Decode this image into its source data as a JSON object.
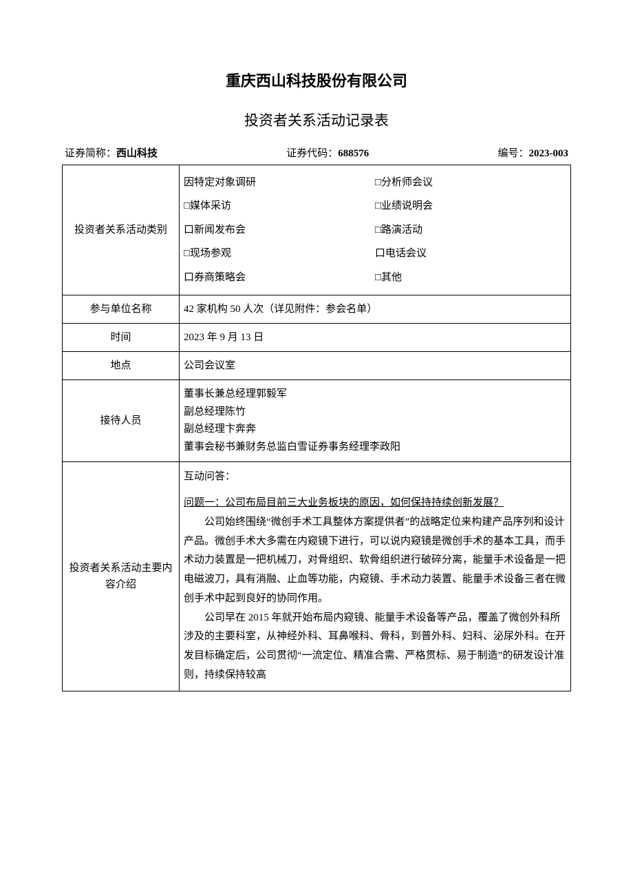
{
  "company_name": "重庆西山科技股份有限公司",
  "doc_title": "投资者关系活动记录表",
  "meta": {
    "sec_short_label": "证券简称：",
    "sec_short_value": "西山科技",
    "sec_code_label": "证券代码：",
    "sec_code_value": "688576",
    "doc_no_label": "编号：",
    "doc_no_value": "2023-003"
  },
  "rows": {
    "activity_type": {
      "label": "投资者关系活动类别",
      "options": [
        [
          "因特定对象调研",
          "□分析师会议"
        ],
        [
          "□媒体采访",
          "□业绩说明会"
        ],
        [
          "口新闻发布会",
          "□路演活动"
        ],
        [
          "□现场参观",
          "口电话会议"
        ],
        [
          "口券商策略会",
          "□其他"
        ]
      ]
    },
    "participants": {
      "label": "参与单位名称",
      "value": "42 家机构 50 人次（详见附件：参会名单）"
    },
    "time": {
      "label": "时间",
      "value": "2023 年 9 月 13 日"
    },
    "location": {
      "label": "地点",
      "value": "公司会议室"
    },
    "receivers": {
      "label": "接待人员",
      "lines": [
        "董事长兼总经理郭毅军",
        "副总经理陈竹",
        "副总经理卞奔奔",
        "董事会秘书兼财务总监白雪证券事务经理李政阳"
      ]
    },
    "content": {
      "label": "投资者关系活动主要内容介绍",
      "header": "互动问答：",
      "question1": "问题一：公司布局目前三大业务板块的原因，如何保持持续创新发展？",
      "para1": "公司始终围绕“微创手术工具整体方案提供者”的战略定位来构建产品序列和设计产品。微创手术大多需在内窥镜下进行，可以说内窥镜是微创手术的基本工具，而手术动力装置是一把机械刀，对骨组织、软骨组织进行破碎分离，能量手术设备是一把电磁波刀，具有消融、止血等功能，内窥镜、手术动力装置、能量手术设备三者在微创手术中起到良好的协同作用。",
      "para2": "公司早在 2015 年就开始布局内窥镜、能量手术设备等产品，覆盖了微创外科所涉及的主要科室，从神经外科、耳鼻喉科、骨科，到普外科、妇科、泌尿外科。在开发目标确定后，公司贯彻“一流定位、精准合需、严格贯标、易于制造”的研发设计准则，持续保持较高"
    }
  }
}
